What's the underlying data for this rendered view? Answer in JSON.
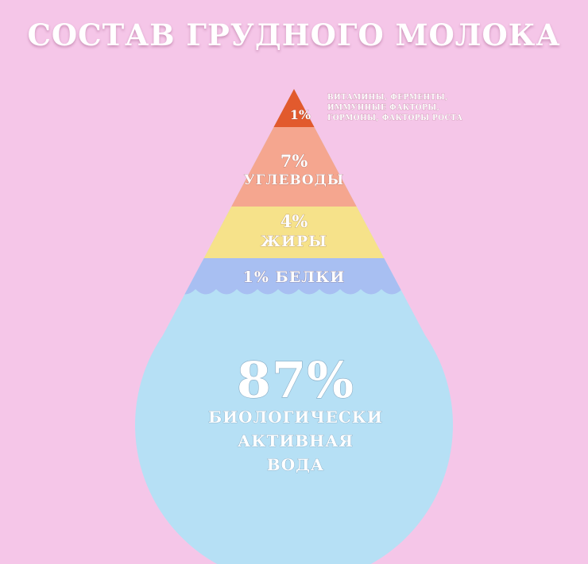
{
  "title": "СОСТАВ ГРУДНОГО МОЛОКА",
  "colors": {
    "background": "#f5c6e8",
    "tip": "#e25a2d",
    "carbs": "#f5a68f",
    "fats": "#f6e28a",
    "proteins": "#a8bff2",
    "water": "#b6e0f5"
  },
  "segments": {
    "tip": {
      "value": "1%",
      "note": [
        "ВИТАМИНЫ, ФЕРМЕНТЫ,",
        "ИММУННЫЕ ФАКТОРЫ,",
        "ГОРМОНЫ, ФАКТОРЫ РОСТА"
      ]
    },
    "carbs": {
      "value": "7%",
      "label": "УГЛЕВОДЫ"
    },
    "fats": {
      "value": "4%",
      "label": "ЖИРЫ"
    },
    "proteins": {
      "label": "1% БЕЛКИ"
    },
    "water": {
      "value": "87%",
      "label": [
        "БИОЛОГИЧЕСКИ",
        "АКТИВНАЯ",
        "ВОДА"
      ]
    }
  }
}
